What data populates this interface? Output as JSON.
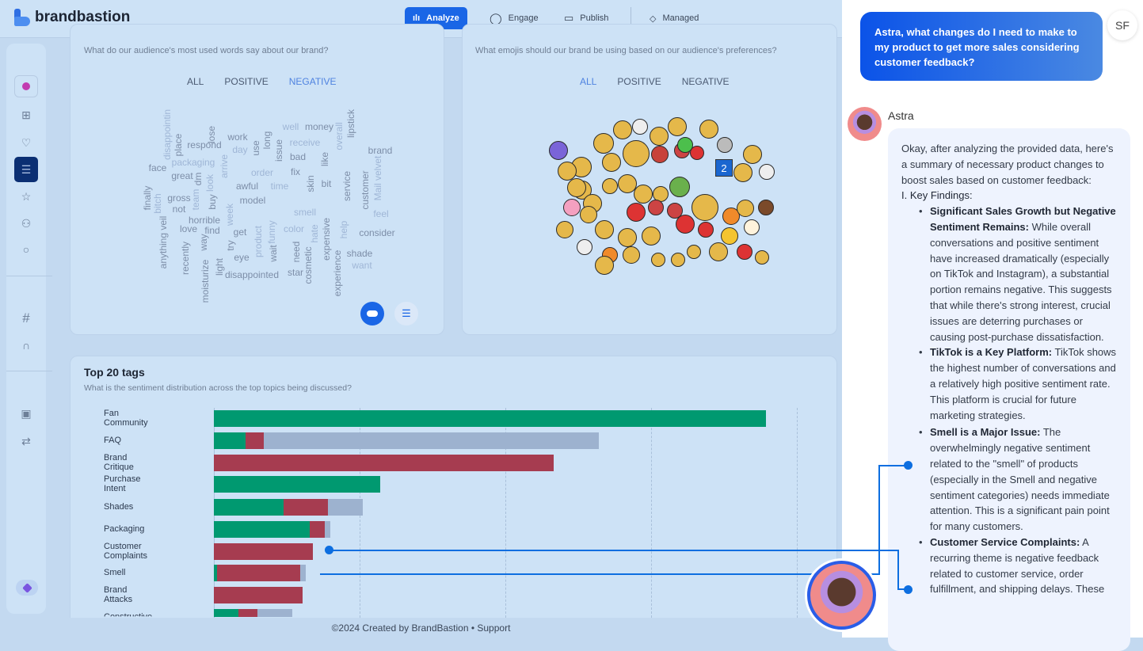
{
  "brand": {
    "name": "brandbastion"
  },
  "nav": [
    {
      "label": "Analyze",
      "icon": "bar-chart-icon",
      "active": true
    },
    {
      "label": "Engage",
      "icon": "chat-bubble-icon"
    },
    {
      "label": "Publish",
      "icon": "calendar-icon"
    },
    {
      "label": "Managed",
      "icon": "diamond-icon"
    }
  ],
  "sidebar": {
    "items": [
      {
        "icon": "brand-dot-icon"
      },
      {
        "icon": "grid-icon"
      },
      {
        "icon": "heart-icon"
      },
      {
        "icon": "list-icon",
        "active": true
      },
      {
        "icon": "star-icon"
      },
      {
        "icon": "users-icon"
      },
      {
        "icon": "comment-icon"
      },
      {
        "icon": "hashtag-icon"
      },
      {
        "icon": "headphones-icon"
      },
      {
        "icon": "image-icon"
      },
      {
        "icon": "repeat-icon"
      },
      {
        "icon": "astra-icon"
      }
    ]
  },
  "words_card": {
    "subtitle": "What do our audience's most used words say about our brand?",
    "tabs": [
      "ALL",
      "POSITIVE",
      "NEGATIVE"
    ],
    "active_tab": "NEGATIVE",
    "words": [
      "disappointin",
      "place",
      "lose",
      "respond",
      "work",
      "day",
      "use",
      "long",
      "issue",
      "well",
      "money",
      "overall",
      "lipstick",
      "receive",
      "bad",
      "like",
      "brand",
      "face",
      "packaging",
      "arrive",
      "great",
      "dm",
      "look",
      "order",
      "fix",
      "skin",
      "bit",
      "service",
      "customer",
      "Mail velvet",
      "awful",
      "time",
      "finally",
      "bitch",
      "gross",
      "team",
      "buy",
      "model",
      "not",
      "week",
      "smell",
      "feel",
      "horrible",
      "anything veil",
      "love",
      "find",
      "get",
      "product",
      "funny",
      "color",
      "hate",
      "expensive",
      "help",
      "consider",
      "recently",
      "moisturize",
      "way",
      "try",
      "light",
      "eye",
      "wait",
      "need",
      "cosmetic",
      "experience",
      "shade",
      "want",
      "disappointed",
      "star"
    ],
    "view_buttons": [
      {
        "icon": "cloud-icon",
        "active": true
      },
      {
        "icon": "list-icon"
      }
    ]
  },
  "emoji_card": {
    "subtitle": "What emojis should our brand be using based on our audience's preferences?",
    "tabs": [
      "ALL",
      "POSITIVE",
      "NEGATIVE"
    ],
    "active_tab": "ALL",
    "badge": "2"
  },
  "chart_data": {
    "type": "bar",
    "stacked": true,
    "orientation": "horizontal",
    "title": "Top 20 tags",
    "subtitle": "What is the sentiment distribution across the top topics being discussed?",
    "categories": [
      "Fan Community",
      "FAQ",
      "Brand Critique",
      "Purchase Intent",
      "Shades",
      "Packaging",
      "Customer Complaints",
      "Smell",
      "Brand Attacks",
      "Constructive"
    ],
    "series": [
      {
        "key": "positive",
        "color": "#009970",
        "values": [
          379,
          22,
          0,
          114,
          48,
          66,
          0,
          2,
          0,
          17
        ]
      },
      {
        "key": "negative",
        "color": "#a63c50",
        "values": [
          0,
          12,
          233,
          0,
          30,
          10,
          68,
          57,
          61,
          13
        ]
      },
      {
        "key": "neutral",
        "color": "#9db2cf",
        "values": [
          0,
          230,
          0,
          0,
          24,
          4,
          0,
          4,
          0,
          24
        ]
      }
    ],
    "xlim": [
      0,
      400
    ],
    "grid": true
  },
  "chat": {
    "user_initials": "SF",
    "user_message": "Astra, what changes do I need to make to my product to get more sales considering customer feedback?",
    "assistant_name": "Astra",
    "intro": "Okay, after analyzing the provided data, here's a summary of necessary product changes to boost sales based on customer feedback:",
    "section": "I. Key Findings:",
    "bullets": [
      {
        "title": "Significant Sales Growth but Negative Sentiment Remains:",
        "text": " While overall conversations and positive sentiment have increased dramatically (especially on TikTok and Instagram), a substantial portion remains negative. This suggests that while there's strong interest, crucial issues are deterring purchases or causing post-purchase dissatisfaction."
      },
      {
        "title": "TikTok is a Key Platform:",
        "text": " TikTok shows the highest number of conversations and a relatively high positive sentiment rate. This platform is crucial for future marketing strategies."
      },
      {
        "title": "Smell is a Major Issue:",
        "text": " The overwhelmingly negative sentiment related to the \"smell\" of products (especially in the Smell and negative sentiment categories) needs immediate attention. This is a significant pain point for many customers."
      },
      {
        "title": "Customer Service Complaints:",
        "text": " A recurring theme is negative feedback related to customer service, order fulfillment, and shipping delays. These"
      }
    ]
  },
  "footer": {
    "text": "©2024 Created by BrandBastion • Support"
  },
  "colors": {
    "accent": "#1a66e6",
    "positive": "#009970",
    "negative": "#a63c50",
    "neutral": "#9db2cf",
    "connector": "#0d6ee0"
  }
}
